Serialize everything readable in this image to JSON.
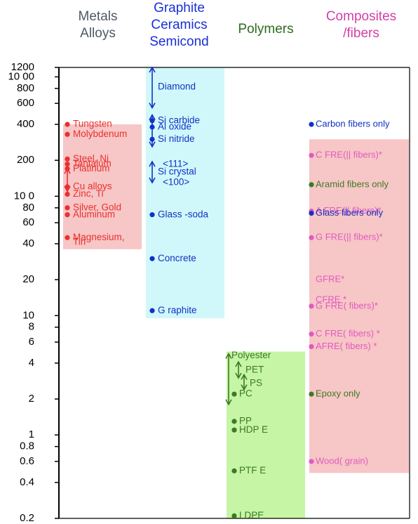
{
  "chart_data": {
    "type": "scatter",
    "title": "",
    "xlabel": "",
    "ylabel": "",
    "yscale": "log",
    "ylim": [
      0.2,
      1200
    ],
    "grid": false,
    "y_ticks": [
      {
        "value": 1200,
        "label": "1200"
      },
      {
        "value": 1000,
        "label": "10 00"
      },
      {
        "value": 800,
        "label": "800"
      },
      {
        "value": 600,
        "label": "600"
      },
      {
        "value": 400,
        "label": "400"
      },
      {
        "value": 200,
        "label": "200"
      },
      {
        "value": 100,
        "label": "10 0"
      },
      {
        "value": 80,
        "label": "80"
      },
      {
        "value": 60,
        "label": "60"
      },
      {
        "value": 40,
        "label": "40"
      },
      {
        "value": 20,
        "label": "20"
      },
      {
        "value": 10,
        "label": "10"
      },
      {
        "value": 8,
        "label": "8"
      },
      {
        "value": 6,
        "label": "6"
      },
      {
        "value": 4,
        "label": "4"
      },
      {
        "value": 2,
        "label": "2"
      },
      {
        "value": 1,
        "label": "1"
      },
      {
        "value": 0.8,
        "label": "0.8"
      },
      {
        "value": 0.6,
        "label": "0.6"
      },
      {
        "value": 0.4,
        "label": "0.4"
      },
      {
        "value": 0.2,
        "label": "0.2"
      }
    ],
    "columns": [
      {
        "header": [
          "Metals",
          "Alloys"
        ],
        "header_color": "#4d5a66",
        "color": "#e8312f",
        "band_color": "#f7c6c6",
        "band": [
          36,
          400
        ],
        "points": [
          {
            "label": "Tungsten",
            "value": 400
          },
          {
            "label": "Molybdenum",
            "value": 330
          },
          {
            "label": "Steel, Ni",
            "value": 205
          },
          {
            "label": "Tantalum",
            "value": 186
          },
          {
            "label": "Platinum",
            "value": 170
          },
          {
            "label": "Cu alloys",
            "value": 120
          },
          {
            "label": "Zinc, Ti",
            "value": 104
          },
          {
            "label": "Silver, Gold",
            "value": 80
          },
          {
            "label": "Aluminum",
            "value": 70
          },
          {
            "label": "Magnesium,",
            "value": 45
          },
          {
            "label": "Tin",
            "value": 41
          }
        ],
        "ranges": [
          {
            "from": 110,
            "to": 170
          }
        ]
      },
      {
        "header": [
          "Graphite",
          "Ceramics",
          "Semicond"
        ],
        "header_color": "#1a2fd6",
        "color": "#1232c4",
        "band_color": "#d0f8fa",
        "band": [
          9.5,
          1200
        ],
        "points": [
          {
            "label": "Diamond",
            "value": 820
          },
          {
            "label": "Si carbide",
            "value": 430
          },
          {
            "label": "Al oxide",
            "value": 380
          },
          {
            "label": "Si nitride",
            "value": 300
          },
          {
            "label": "<111>",
            "value": 185
          },
          {
            "label": "Si crystal",
            "value": 160
          },
          {
            "label": "<100>",
            "value": 130
          },
          {
            "label": "Glass  -soda",
            "value": 70
          },
          {
            "label": "Concrete",
            "value": 30
          },
          {
            "label": "G raphite",
            "value": 11
          }
        ],
        "ranges": [
          {
            "from": 1200,
            "to": 550
          },
          {
            "from": 480,
            "to": 260
          },
          {
            "from": 195,
            "to": 130
          }
        ],
        "dots": [
          430,
          380,
          300,
          70,
          30,
          11
        ]
      },
      {
        "header": [
          "Polymers"
        ],
        "header_color": "#2e6b1f",
        "color": "#3c7a23",
        "band_color": "#c6f5a6",
        "band": [
          0.2,
          5
        ],
        "points": [
          {
            "label": "Polyester",
            "value": 4.6
          },
          {
            "label": "PET",
            "value": 3.5
          },
          {
            "label": "PS",
            "value": 2.7
          },
          {
            "label": "PC",
            "value": 2.2
          },
          {
            "label": "PP",
            "value": 1.3
          },
          {
            "label": "HDP  E",
            "value": 1.1
          },
          {
            "label": "PTF  E",
            "value": 0.5
          },
          {
            "label": "LDPE",
            "value": 0.21
          }
        ],
        "ranges": [
          {
            "from": 1.8,
            "to": 4.8
          },
          {
            "from": 3,
            "to": 4.1
          },
          {
            "from": 2.4,
            "to": 3.2
          }
        ],
        "dots": [
          2.2,
          1.3,
          1.1,
          0.5,
          0.21
        ]
      },
      {
        "header": [
          "Composites",
          "/fibers"
        ],
        "header_color": "#d43fa6",
        "color": "#e05bc0",
        "band_color": "#f7c6c6",
        "band": [
          0.48,
          300
        ],
        "points": [
          {
            "label": "Carbon   fibers only",
            "value": 400,
            "color": "#1232c4"
          },
          {
            "label": "C FRE(|| fibers)*",
            "value": 220,
            "color": "#e05bc0"
          },
          {
            "label": "Aramid fibers only",
            "value": 125,
            "color": "#3c7a23"
          },
          {
            "label": "A FRE(|| fibers)*",
            "value": 75,
            "color": "#e05bc0"
          },
          {
            "label": "Glass fibers only",
            "value": 72,
            "color": "#1232c4"
          },
          {
            "label": "G FRE(|| fibers)*",
            "value": 45,
            "color": "#e05bc0"
          },
          {
            "label": "GFRE*",
            "value": 20,
            "color": "#e05bc0"
          },
          {
            "label": "CFRE   *",
            "value": 13.5,
            "color": "#e05bc0"
          },
          {
            "label": "G FRE(   fibers)*",
            "value": 12,
            "color": "#e05bc0"
          },
          {
            "label": "C FRE(   fibers)      *",
            "value": 7,
            "color": "#e05bc0"
          },
          {
            "label": "AFRE(   fibers)       *",
            "value": 5.5,
            "color": "#e05bc0"
          },
          {
            "label": "Epoxy only",
            "value": 2.2,
            "color": "#3c7a23"
          },
          {
            "label": "Wood(   grain)",
            "value": 0.6,
            "color": "#e05bc0"
          }
        ]
      }
    ]
  }
}
